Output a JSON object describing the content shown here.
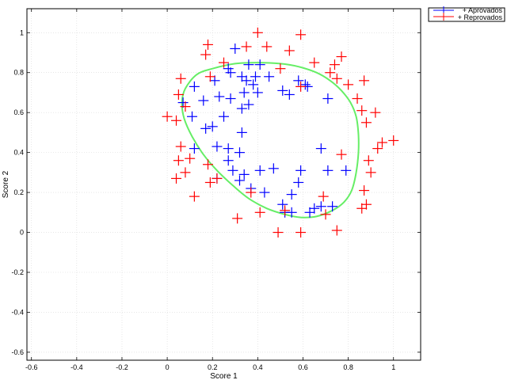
{
  "chart_data": {
    "type": "scatter",
    "xlabel": "Score 1",
    "ylabel": "Score 2",
    "xlim": [
      -0.62,
      1.12
    ],
    "ylim": [
      -0.64,
      1.12
    ],
    "xticks": [
      -0.6,
      -0.4,
      -0.2,
      0,
      0.2,
      0.4,
      0.6,
      0.8,
      1
    ],
    "yticks": [
      -0.6,
      -0.4,
      -0.2,
      0,
      0.2,
      0.4,
      0.6,
      0.8,
      1
    ],
    "xtick_labels": [
      "-0.6",
      "-0.4",
      "-0.2",
      "0",
      "0.2",
      "0.4",
      "0.6",
      "0.8",
      "1"
    ],
    "ytick_labels": [
      "-0.6",
      "-0.4",
      "-0.2",
      "0",
      "0.2",
      "0.4",
      "0.6",
      "0.8",
      "1"
    ],
    "grid": true,
    "legend_position": "outside-top-right",
    "series": [
      {
        "name": "+ Aprovados",
        "marker": "+",
        "color": "#0000ff",
        "points": [
          [
            0.3,
            0.92
          ],
          [
            0.36,
            0.84
          ],
          [
            0.41,
            0.84
          ],
          [
            0.27,
            0.82
          ],
          [
            0.33,
            0.78
          ],
          [
            0.35,
            0.76
          ],
          [
            0.39,
            0.78
          ],
          [
            0.45,
            0.78
          ],
          [
            0.28,
            0.8
          ],
          [
            0.38,
            0.74
          ],
          [
            0.58,
            0.76
          ],
          [
            0.61,
            0.74
          ],
          [
            0.21,
            0.76
          ],
          [
            0.12,
            0.73
          ],
          [
            0.23,
            0.68
          ],
          [
            0.28,
            0.67
          ],
          [
            0.34,
            0.7
          ],
          [
            0.4,
            0.7
          ],
          [
            0.51,
            0.71
          ],
          [
            0.54,
            0.69
          ],
          [
            0.62,
            0.73
          ],
          [
            0.16,
            0.66
          ],
          [
            0.07,
            0.65
          ],
          [
            0.71,
            0.67
          ],
          [
            0.25,
            0.58
          ],
          [
            0.33,
            0.62
          ],
          [
            0.36,
            0.64
          ],
          [
            0.11,
            0.58
          ],
          [
            0.17,
            0.52
          ],
          [
            0.2,
            0.53
          ],
          [
            0.33,
            0.5
          ],
          [
            0.12,
            0.42
          ],
          [
            0.22,
            0.43
          ],
          [
            0.27,
            0.42
          ],
          [
            0.32,
            0.4
          ],
          [
            0.68,
            0.42
          ],
          [
            0.27,
            0.36
          ],
          [
            0.29,
            0.31
          ],
          [
            0.34,
            0.29
          ],
          [
            0.41,
            0.31
          ],
          [
            0.47,
            0.32
          ],
          [
            0.59,
            0.31
          ],
          [
            0.71,
            0.31
          ],
          [
            0.79,
            0.31
          ],
          [
            0.22,
            0.27
          ],
          [
            0.32,
            0.26
          ],
          [
            0.37,
            0.22
          ],
          [
            0.43,
            0.2
          ],
          [
            0.55,
            0.19
          ],
          [
            0.51,
            0.14
          ],
          [
            0.52,
            0.1
          ],
          [
            0.55,
            0.1
          ],
          [
            0.63,
            0.1
          ],
          [
            0.65,
            0.12
          ],
          [
            0.68,
            0.13
          ],
          [
            0.73,
            0.13
          ],
          [
            0.58,
            0.25
          ]
        ]
      },
      {
        "name": "+ Reprovados",
        "marker": "+",
        "color": "#ff0000",
        "points": [
          [
            0.4,
            1.0
          ],
          [
            0.59,
            0.99
          ],
          [
            0.18,
            0.94
          ],
          [
            0.35,
            0.93
          ],
          [
            0.44,
            0.93
          ],
          [
            0.17,
            0.89
          ],
          [
            0.54,
            0.91
          ],
          [
            0.77,
            0.88
          ],
          [
            0.25,
            0.85
          ],
          [
            0.65,
            0.85
          ],
          [
            0.74,
            0.84
          ],
          [
            0.72,
            0.8
          ],
          [
            0.19,
            0.78
          ],
          [
            0.06,
            0.77
          ],
          [
            0.5,
            0.82
          ],
          [
            0.75,
            0.77
          ],
          [
            0.8,
            0.74
          ],
          [
            0.87,
            0.76
          ],
          [
            0.59,
            0.73
          ],
          [
            0.05,
            0.69
          ],
          [
            0.08,
            0.63
          ],
          [
            0.84,
            0.67
          ],
          [
            0.86,
            0.61
          ],
          [
            0.92,
            0.6
          ],
          [
            0.0,
            0.58
          ],
          [
            0.04,
            0.56
          ],
          [
            0.88,
            0.55
          ],
          [
            1.0,
            0.46
          ],
          [
            0.95,
            0.45
          ],
          [
            0.93,
            0.42
          ],
          [
            0.06,
            0.43
          ],
          [
            0.77,
            0.39
          ],
          [
            0.05,
            0.36
          ],
          [
            0.1,
            0.37
          ],
          [
            0.89,
            0.36
          ],
          [
            0.18,
            0.34
          ],
          [
            0.9,
            0.3
          ],
          [
            0.08,
            0.3
          ],
          [
            0.04,
            0.27
          ],
          [
            0.19,
            0.25
          ],
          [
            0.22,
            0.27
          ],
          [
            0.87,
            0.21
          ],
          [
            0.12,
            0.18
          ],
          [
            0.37,
            0.2
          ],
          [
            0.69,
            0.18
          ],
          [
            0.88,
            0.14
          ],
          [
            0.86,
            0.12
          ],
          [
            0.41,
            0.1
          ],
          [
            0.52,
            0.11
          ],
          [
            0.7,
            0.09
          ],
          [
            0.31,
            0.07
          ],
          [
            0.49,
            0.0
          ],
          [
            0.59,
            0.0
          ],
          [
            0.75,
            0.01
          ]
        ]
      },
      {
        "name": "",
        "type": "line",
        "color": "#66ee66",
        "closed": true,
        "points": [
          [
            0.13,
            0.79
          ],
          [
            0.2,
            0.82
          ],
          [
            0.3,
            0.845
          ],
          [
            0.4,
            0.85
          ],
          [
            0.5,
            0.845
          ],
          [
            0.58,
            0.83
          ],
          [
            0.66,
            0.8
          ],
          [
            0.72,
            0.76
          ],
          [
            0.77,
            0.71
          ],
          [
            0.81,
            0.65
          ],
          [
            0.835,
            0.58
          ],
          [
            0.845,
            0.49
          ],
          [
            0.845,
            0.4
          ],
          [
            0.835,
            0.3
          ],
          [
            0.815,
            0.21
          ],
          [
            0.78,
            0.15
          ],
          [
            0.73,
            0.11
          ],
          [
            0.66,
            0.08
          ],
          [
            0.59,
            0.075
          ],
          [
            0.52,
            0.09
          ],
          [
            0.44,
            0.12
          ],
          [
            0.36,
            0.17
          ],
          [
            0.29,
            0.235
          ],
          [
            0.22,
            0.31
          ],
          [
            0.16,
            0.39
          ],
          [
            0.11,
            0.48
          ],
          [
            0.075,
            0.57
          ],
          [
            0.065,
            0.65
          ],
          [
            0.08,
            0.72
          ]
        ]
      }
    ]
  }
}
